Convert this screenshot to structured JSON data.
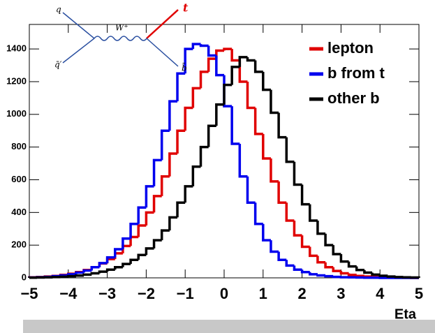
{
  "chart_data": {
    "type": "histogram",
    "x_label": "Eta",
    "bins": [
      -5,
      -4.8,
      -4.6,
      -4.4,
      -4.2,
      -4,
      -3.8,
      -3.6,
      -3.4,
      -3.2,
      -3,
      -2.8,
      -2.6,
      -2.4,
      -2.2,
      -2,
      -1.8,
      -1.6,
      -1.4,
      -1.2,
      -1,
      -0.8,
      -0.6,
      -0.4,
      -0.2,
      0,
      0.2,
      0.4,
      0.6,
      0.8,
      1,
      1.2,
      1.4,
      1.6,
      1.8,
      2,
      2.2,
      2.4,
      2.6,
      2.8,
      3,
      3.2,
      3.4,
      3.6,
      3.8,
      4,
      4.2,
      4.4,
      4.6,
      4.8,
      5
    ],
    "series": [
      {
        "name": "lepton",
        "color": "#e00000",
        "values": [
          3,
          5,
          8,
          12,
          18,
          25,
          35,
          48,
          65,
          88,
          115,
          150,
          195,
          250,
          320,
          400,
          500,
          620,
          760,
          900,
          1040,
          1160,
          1260,
          1340,
          1390,
          1400,
          1330,
          1200,
          1040,
          880,
          730,
          590,
          460,
          350,
          260,
          190,
          135,
          95,
          65,
          42,
          28,
          18,
          12,
          8,
          5,
          3,
          2,
          1,
          1,
          0
        ]
      },
      {
        "name": "b from t",
        "color": "#0000ee",
        "values": [
          2,
          4,
          6,
          10,
          15,
          22,
          32,
          45,
          65,
          90,
          125,
          175,
          240,
          330,
          430,
          560,
          720,
          900,
          1080,
          1250,
          1400,
          1430,
          1420,
          1360,
          1240,
          1050,
          820,
          620,
          460,
          330,
          230,
          160,
          110,
          75,
          50,
          35,
          22,
          15,
          10,
          6,
          4,
          3,
          2,
          1,
          1,
          0,
          0,
          0,
          0,
          0
        ]
      },
      {
        "name": "other b",
        "color": "#000000",
        "values": [
          1,
          2,
          3,
          5,
          7,
          10,
          14,
          20,
          28,
          38,
          50,
          65,
          85,
          110,
          140,
          180,
          230,
          290,
          370,
          460,
          560,
          680,
          800,
          930,
          1060,
          1180,
          1290,
          1350,
          1330,
          1260,
          1150,
          1010,
          860,
          710,
          570,
          450,
          350,
          270,
          200,
          145,
          100,
          70,
          48,
          32,
          20,
          13,
          8,
          5,
          3,
          2
        ]
      }
    ],
    "xlim": [
      -5,
      5
    ],
    "xticks": [
      {
        "value": -5,
        "label": "−5"
      },
      {
        "value": -4,
        "label": "−4"
      },
      {
        "value": -3,
        "label": "−3"
      },
      {
        "value": -2,
        "label": "−2"
      },
      {
        "value": -1,
        "label": "−1"
      },
      0,
      1,
      2,
      3,
      4,
      5
    ],
    "ylim": [
      0,
      1550
    ],
    "yticks": [
      0,
      200,
      400,
      600,
      800,
      1000,
      1200,
      1400
    ],
    "legend": "top-right",
    "inset": {
      "q": "q",
      "qbar": "q̄′",
      "w": "W⁺",
      "t": "t",
      "bbar": "b̄"
    }
  }
}
